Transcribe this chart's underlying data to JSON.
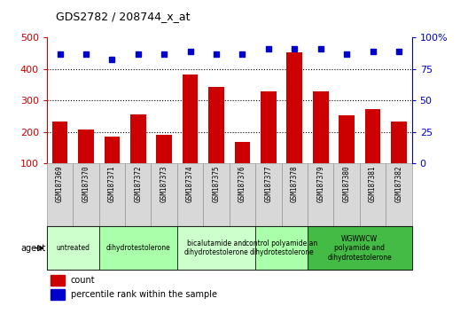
{
  "title": "GDS2782 / 208744_x_at",
  "samples": [
    "GSM187369",
    "GSM187370",
    "GSM187371",
    "GSM187372",
    "GSM187373",
    "GSM187374",
    "GSM187375",
    "GSM187376",
    "GSM187377",
    "GSM187378",
    "GSM187379",
    "GSM187380",
    "GSM187381",
    "GSM187382"
  ],
  "counts": [
    232,
    208,
    184,
    257,
    192,
    382,
    344,
    168,
    330,
    452,
    328,
    254,
    272,
    232
  ],
  "percentiles": [
    87,
    87,
    83,
    87,
    87,
    89,
    87,
    87,
    91,
    91,
    91,
    87,
    89,
    89
  ],
  "bar_color": "#cc0000",
  "dot_color": "#0000cc",
  "ylim_left": [
    100,
    500
  ],
  "ylim_right": [
    0,
    100
  ],
  "yticks_left": [
    100,
    200,
    300,
    400,
    500
  ],
  "yticks_right": [
    0,
    25,
    50,
    75,
    100
  ],
  "yticklabels_right": [
    "0",
    "25",
    "50",
    "75",
    "100%"
  ],
  "groups": [
    {
      "label": "untreated",
      "indices": [
        0,
        1
      ],
      "color": "#ccffcc"
    },
    {
      "label": "dihydrotestolerone",
      "indices": [
        2,
        3,
        4
      ],
      "color": "#aaffaa"
    },
    {
      "label": "bicalutamide and\ndihydrotestolerone",
      "indices": [
        5,
        6,
        7
      ],
      "color": "#ccffcc"
    },
    {
      "label": "control polyamide an\ndihydrotestolerone",
      "indices": [
        8,
        9
      ],
      "color": "#aaffaa"
    },
    {
      "label": "WGWWCW\npolyamide and\ndihydrotestolerone",
      "indices": [
        10,
        11,
        12,
        13
      ],
      "color": "#44bb44"
    }
  ],
  "agent_label": "agent",
  "legend_count_label": "count",
  "legend_pct_label": "percentile rank within the sample",
  "axis_left_color": "#cc0000",
  "axis_right_color": "#0000cc",
  "background_color": "#ffffff",
  "tick_bg_color": "#d8d8d8",
  "tick_border_color": "#888888"
}
